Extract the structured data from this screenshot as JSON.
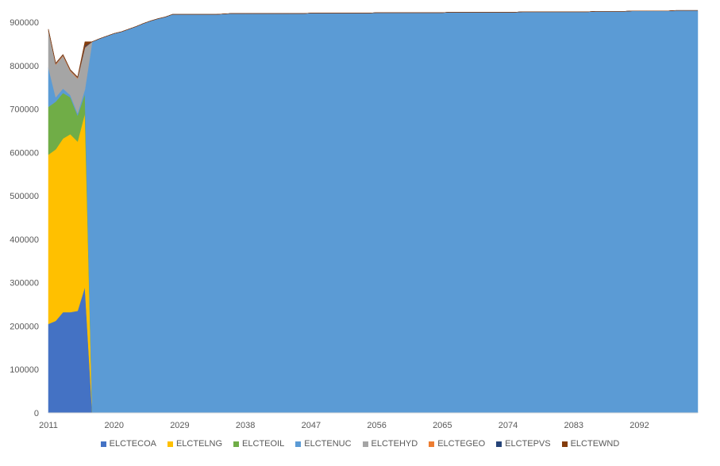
{
  "chart_data": {
    "type": "area",
    "stacked": true,
    "x_start": 2011,
    "x_end": 2100,
    "x_tick_labels": [
      "2011",
      "2020",
      "2029",
      "2038",
      "2047",
      "2056",
      "2065",
      "2074",
      "2083",
      "2092"
    ],
    "ylim": [
      0,
      900000
    ],
    "y_tick_labels": [
      "0",
      "100000",
      "200000",
      "300000",
      "400000",
      "500000",
      "600000",
      "700000",
      "800000",
      "900000"
    ],
    "legend_position": "bottom",
    "grid": false,
    "series": [
      {
        "name": "ELCTECOA",
        "color": "#4472C4",
        "values": [
          205000,
          212000,
          232000,
          232000,
          235000,
          290000,
          0
        ]
      },
      {
        "name": "ELCTELNG",
        "color": "#FFC000",
        "values": [
          390000,
          395000,
          400000,
          410000,
          390000,
          400000,
          0
        ]
      },
      {
        "name": "ELCTEOIL",
        "color": "#70AD47",
        "values": [
          110000,
          110000,
          105000,
          85000,
          60000,
          45000,
          0
        ]
      },
      {
        "name": "ELCTENUC",
        "color": "#5B9BD5",
        "values": [
          90000,
          10000,
          10000,
          5000,
          5000,
          10000,
          855000,
          862000,
          868000,
          874000,
          878000,
          884000,
          890000,
          897000,
          903000,
          908000,
          912000,
          918000,
          918000,
          918000,
          918000,
          918000,
          918000,
          918000,
          919000,
          920000,
          920000,
          920000,
          920000,
          920000,
          920000,
          920000,
          920000,
          920000,
          920000,
          920000,
          921000,
          921000,
          921000,
          921000,
          921000,
          921000,
          921000,
          921000,
          921000,
          922000,
          922000,
          922000,
          922000,
          922000,
          922000,
          922000,
          922000,
          922000,
          922000,
          923000,
          923000,
          923000,
          923000,
          923000,
          923000,
          923000,
          923000,
          923000,
          923000,
          924000,
          924000,
          924000,
          924000,
          924000,
          924000,
          924000,
          924000,
          924000,
          924000,
          925000,
          925000,
          925000,
          925000,
          925000,
          926000,
          926000,
          926000,
          926000,
          926000,
          926000,
          927000,
          927000,
          927000,
          927000
        ]
      },
      {
        "name": "ELCTEHYD",
        "color": "#A5A5A5",
        "values": [
          85000,
          75000,
          75000,
          55000,
          80000,
          95000,
          0
        ]
      },
      {
        "name": "ELCTEGEO",
        "color": "#ED7D31",
        "values": [
          2000,
          2000,
          2000,
          2000,
          2000,
          2000,
          0
        ]
      },
      {
        "name": "ELCTEPVS",
        "color": "#264478",
        "values": [
          1000,
          1000,
          1000,
          1000,
          1000,
          3000,
          0
        ]
      },
      {
        "name": "ELCTEWND",
        "color": "#843C0C",
        "values": [
          1000,
          1000,
          1000,
          1000,
          1000,
          10000,
          0
        ]
      }
    ]
  }
}
